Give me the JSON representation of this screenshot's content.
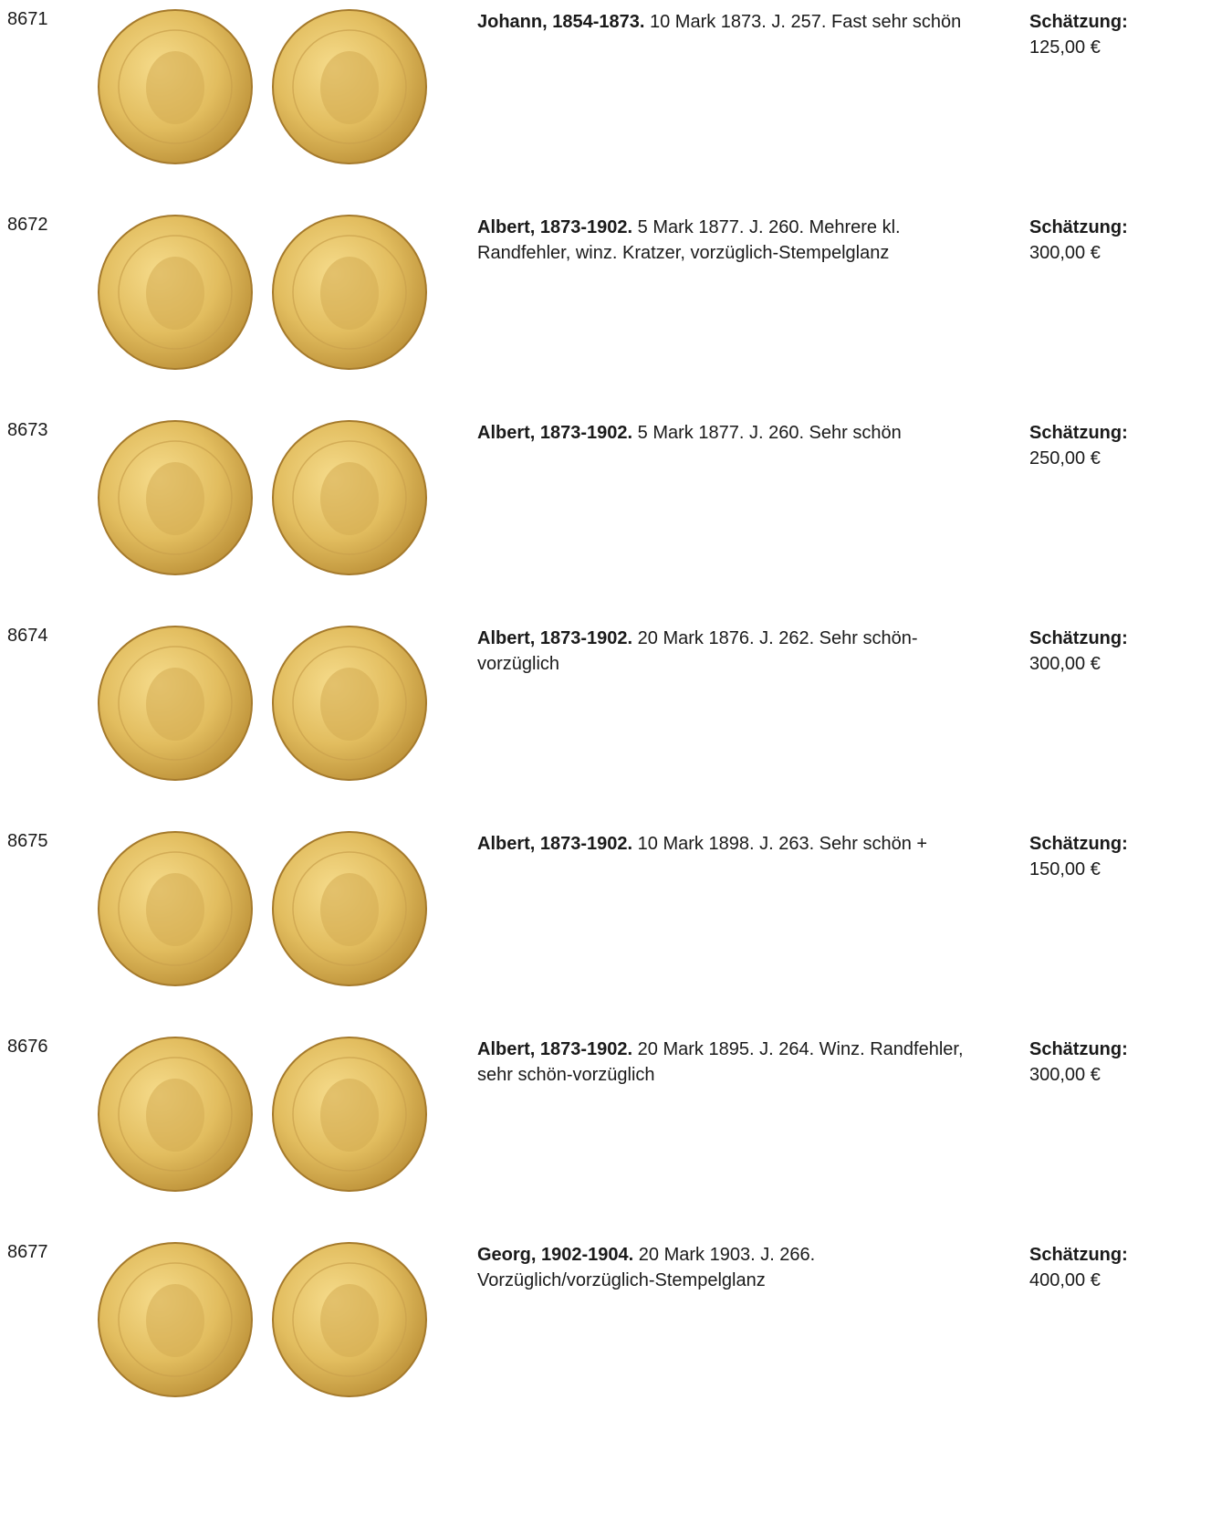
{
  "lots": [
    {
      "number": "8671",
      "title": "Johann, 1854-1873.",
      "text": "10 Mark 1873. J. 257. Fast sehr schön",
      "estimate_label": "Schätzung:",
      "estimate": "125,00 €"
    },
    {
      "number": "8672",
      "title": "Albert, 1873-1902.",
      "text": "5 Mark 1877. J. 260. Mehrere kl. Randfehler, winz. Kratzer, vorzüglich-Stempelglanz",
      "estimate_label": "Schätzung:",
      "estimate": "300,00 €"
    },
    {
      "number": "8673",
      "title": "Albert, 1873-1902.",
      "text": "5 Mark 1877. J. 260. Sehr schön",
      "estimate_label": "Schätzung:",
      "estimate": "250,00 €"
    },
    {
      "number": "8674",
      "title": "Albert, 1873-1902.",
      "text": "20 Mark 1876. J. 262. Sehr schön-vorzüglich",
      "estimate_label": "Schätzung:",
      "estimate": "300,00 €"
    },
    {
      "number": "8675",
      "title": "Albert, 1873-1902.",
      "text": "10 Mark 1898. J. 263. Sehr schön +",
      "estimate_label": "Schätzung:",
      "estimate": "150,00 €"
    },
    {
      "number": "8676",
      "title": "Albert, 1873-1902.",
      "text": "20 Mark 1895. J. 264. Winz. Randfehler, sehr schön-vorzüglich",
      "estimate_label": "Schätzung:",
      "estimate": "300,00 €"
    },
    {
      "number": "8677",
      "title": "Georg, 1902-1904.",
      "text": "20 Mark 1903. J. 266. Vorzüglich/vorzüglich-Stempelglanz",
      "estimate_label": "Schätzung:",
      "estimate": "400,00 €"
    }
  ]
}
